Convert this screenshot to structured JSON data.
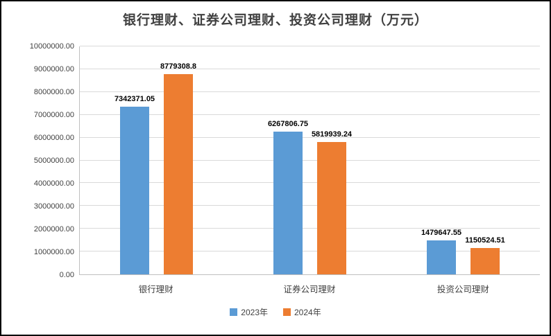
{
  "window": {
    "border_color": "#000000",
    "background_color": "#ffffff"
  },
  "colors": {
    "series_2023": "#5B9BD5",
    "series_2024": "#ED7D31",
    "gridline": "#D9D9D9",
    "axis_line": "#BFBFBF",
    "title_text": "#404040",
    "tick_text": "#404040",
    "data_label_text": "#000000"
  },
  "chart_data": {
    "type": "bar",
    "title": "银行理财、证券公司理财、投资公司理财（万元）",
    "xlabel": "",
    "ylabel": "",
    "categories": [
      "银行理财",
      "证券公司理财",
      "投资公司理财"
    ],
    "series": [
      {
        "name": "2023年",
        "color": "#5B9BD5",
        "values": [
          7342371.05,
          6267806.75,
          1479647.55
        ],
        "data_labels": [
          "7342371.05",
          "6267806.75",
          "1479647.55"
        ]
      },
      {
        "name": "2024年",
        "color": "#ED7D31",
        "values": [
          8779308.8,
          5819939.24,
          1150524.51
        ],
        "data_labels": [
          "8779308.8",
          "5819939.24",
          "1150524.51"
        ]
      }
    ],
    "ylim": [
      0,
      10000000
    ],
    "ytick_step": 1000000,
    "ytick_labels": [
      "0.00",
      "1000000.00",
      "2000000.00",
      "3000000.00",
      "4000000.00",
      "5000000.00",
      "6000000.00",
      "7000000.00",
      "8000000.00",
      "9000000.00",
      "10000000.00"
    ],
    "grid": true,
    "legend_position": "bottom",
    "legend_entries": [
      "2023年",
      "2024年"
    ]
  }
}
